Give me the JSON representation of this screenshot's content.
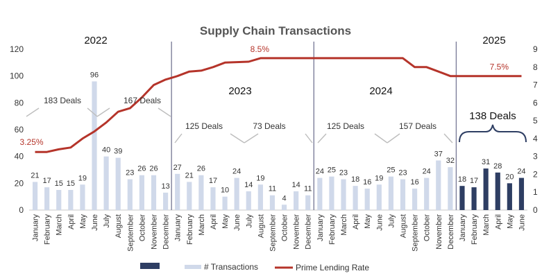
{
  "chart_data": {
    "type": "bar",
    "title": "Supply Chain Transactions",
    "categories": [
      "January",
      "February",
      "March",
      "April",
      "May",
      "June",
      "July",
      "August",
      "September",
      "October",
      "November",
      "December",
      "January",
      "February",
      "March",
      "April",
      "May",
      "June",
      "July",
      "August",
      "September",
      "October",
      "November",
      "December",
      "January",
      "February",
      "March",
      "April",
      "May",
      "June",
      "July",
      "August",
      "September",
      "October",
      "November",
      "December",
      "January",
      "February",
      "March",
      "April",
      "May",
      "June"
    ],
    "series": [
      {
        "name": "# Transactions",
        "type": "bar",
        "axis": "left",
        "values": [
          21,
          17,
          15,
          15,
          19,
          96,
          40,
          39,
          23,
          26,
          26,
          13,
          27,
          21,
          26,
          17,
          10,
          24,
          14,
          19,
          11,
          4,
          14,
          11,
          24,
          25,
          23,
          18,
          16,
          19,
          25,
          23,
          16,
          24,
          37,
          32,
          18,
          17,
          31,
          28,
          20,
          24
        ]
      },
      {
        "name": "Prime Lending Rate",
        "type": "line",
        "axis": "right",
        "values": [
          3.25,
          3.25,
          3.4,
          3.5,
          4.0,
          4.4,
          4.9,
          5.5,
          5.7,
          6.3,
          7.0,
          7.3,
          7.5,
          7.75,
          7.8,
          8.0,
          8.25,
          8.28,
          8.3,
          8.5,
          8.5,
          8.5,
          8.5,
          8.5,
          8.5,
          8.5,
          8.5,
          8.5,
          8.5,
          8.5,
          8.5,
          8.5,
          8.0,
          8.0,
          7.75,
          7.5,
          7.5,
          7.5,
          7.5,
          7.5,
          7.5,
          7.5
        ]
      }
    ],
    "legend": {
      "position": "bottom",
      "items": [
        {
          "name": "",
          "color": "#2e3e63"
        },
        {
          "name": "# Transactions",
          "color": "#d0d9ea"
        },
        {
          "name": "Prime Lending Rate",
          "color": "#b5342a"
        }
      ]
    },
    "y_left": {
      "min": 0,
      "max": 120,
      "ticks": [
        0,
        20,
        40,
        60,
        80,
        100,
        120
      ]
    },
    "y_right": {
      "min": 0,
      "max": 9,
      "ticks": [
        0,
        1,
        2,
        3,
        4,
        5,
        6,
        7,
        8,
        9
      ]
    },
    "grid": false,
    "years": [
      "2022",
      "2023",
      "2024",
      "2025"
    ],
    "rate_labels": [
      {
        "index": 0,
        "text": "3.25%"
      },
      {
        "index": 19,
        "text": "8.5%"
      },
      {
        "index": 40,
        "text": "7.5%"
      }
    ],
    "deal_labels": [
      "183 Deals",
      "167 Deals",
      "125 Deals",
      "73 Deals",
      "125 Deals",
      "157 Deals",
      "138 Deals"
    ],
    "highlight_start_index": 36,
    "colors": {
      "bar_light": "#d0d9ea",
      "bar_dark": "#2e3e63",
      "line": "#b5342a",
      "divider": "#7d7f9a",
      "axis": "#c8c8c8",
      "text": "#333333"
    }
  }
}
